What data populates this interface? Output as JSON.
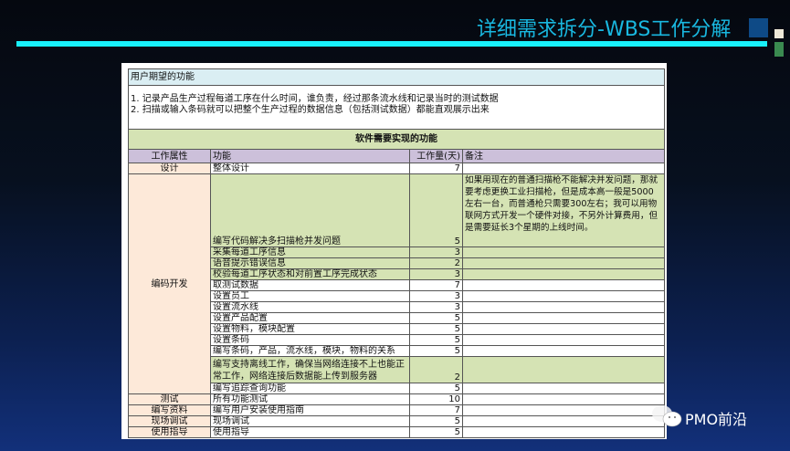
{
  "slide": {
    "title": "详细需求拆分-WBS工作分解",
    "brand": "PMO前沿"
  },
  "sheet": {
    "expected_header": "用户期望的功能",
    "expected_lines": [
      "1. 记录产品生产过程每道工序在什么时间，谁负责，经过那条流水线和记录当时的测试数据",
      "2. 扫描或输入条码就可以把整个生产过程的数据信息（包括测试数据）都能直观展示出来"
    ],
    "section_title": "软件需要实现的功能",
    "columns": [
      "工作属性",
      "功能",
      "工作量(天)",
      "备注"
    ],
    "groups": [
      {
        "attr": "设计",
        "rows": [
          {
            "func": "整体设计",
            "days": "7"
          }
        ]
      },
      {
        "attr": "编码开发",
        "rows": [
          {
            "func": "编写代码解决多扫描枪并发问题",
            "days": "5",
            "note": "如果用现在的普通扫描枪不能解决并发问题，那就要考虑更换工业扫描枪，但是成本高一般是5000左右一台，而普通枪只需要300左右；我可以用物联网方式开发一个硬件对接，不另外计算费用，但是需要延长3个星期的上线时间。",
            "hl": true
          },
          {
            "func": "采集每道工序信息",
            "days": "3",
            "hl": true
          },
          {
            "func": "语音提示错误信息",
            "days": "2",
            "hl": true
          },
          {
            "func": "校验每道工序状态和对前置工序完成状态",
            "days": "3",
            "hl": true
          },
          {
            "func": "取测试数据",
            "days": "7"
          },
          {
            "func": "设置员工",
            "days": "3"
          },
          {
            "func": "设置流水线",
            "days": "3"
          },
          {
            "func": "设置产品配置",
            "days": "5"
          },
          {
            "func": "设置物料，模块配置",
            "days": "5"
          },
          {
            "func": "设置条码",
            "days": "5"
          },
          {
            "func": "编写条码，产品，流水线，模块，物料的关系",
            "days": "5"
          },
          {
            "func": "编写支持离线工作，确保当网络连接不上也能正常工作，网络连接后数据能上传到服务器",
            "days": "2",
            "hl": true
          },
          {
            "func": "编写追踪查询功能",
            "days": "5"
          }
        ]
      },
      {
        "attr": "测试",
        "rows": [
          {
            "func": "所有功能测试",
            "days": "10"
          }
        ]
      },
      {
        "attr": "编写资料",
        "rows": [
          {
            "func": "编写用户安装使用指南",
            "days": "7"
          }
        ]
      },
      {
        "attr": "现场调试",
        "rows": [
          {
            "func": "现场调试",
            "days": "5"
          }
        ]
      },
      {
        "attr": "使用指导",
        "rows": [
          {
            "func": "使用指导",
            "days": "5"
          }
        ]
      }
    ]
  }
}
